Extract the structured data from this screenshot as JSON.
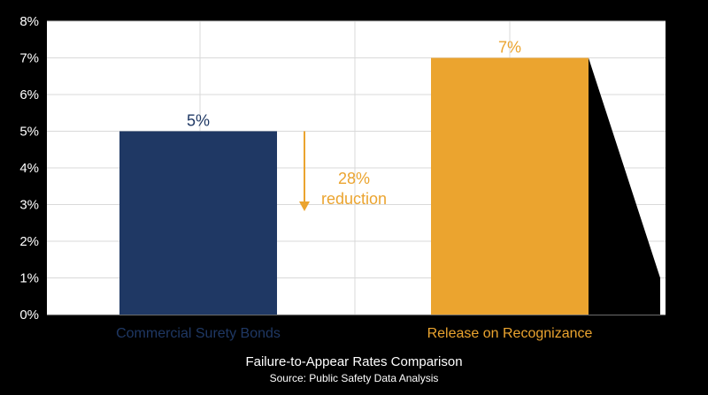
{
  "chart_data": {
    "type": "bar",
    "title": "Failure-to-Appear Rates Comparison",
    "subtitle": "Source: Public Safety Data Analysis",
    "categories": [
      "Commercial Surety Bonds",
      "Release on Recognizance"
    ],
    "values": [
      5,
      7
    ],
    "value_labels": [
      "5%",
      "7%"
    ],
    "ylim": [
      0,
      8
    ],
    "y_ticks": [
      "0%",
      "1%",
      "2%",
      "3%",
      "4%",
      "5%",
      "6%",
      "7%",
      "8%"
    ],
    "grid": true,
    "annotation": {
      "lines": [
        "28%",
        "reduction"
      ],
      "arrow": "down"
    }
  },
  "colors": {
    "bar_1": "#1f3864",
    "bar_2": "#eba42f",
    "category_label_1": "#1f3864",
    "category_label_2": "#eba42f",
    "annotation": "#eba42f",
    "plot_background": "#ffffff",
    "grid": "#d9d9d9",
    "page_background": "#000000"
  }
}
